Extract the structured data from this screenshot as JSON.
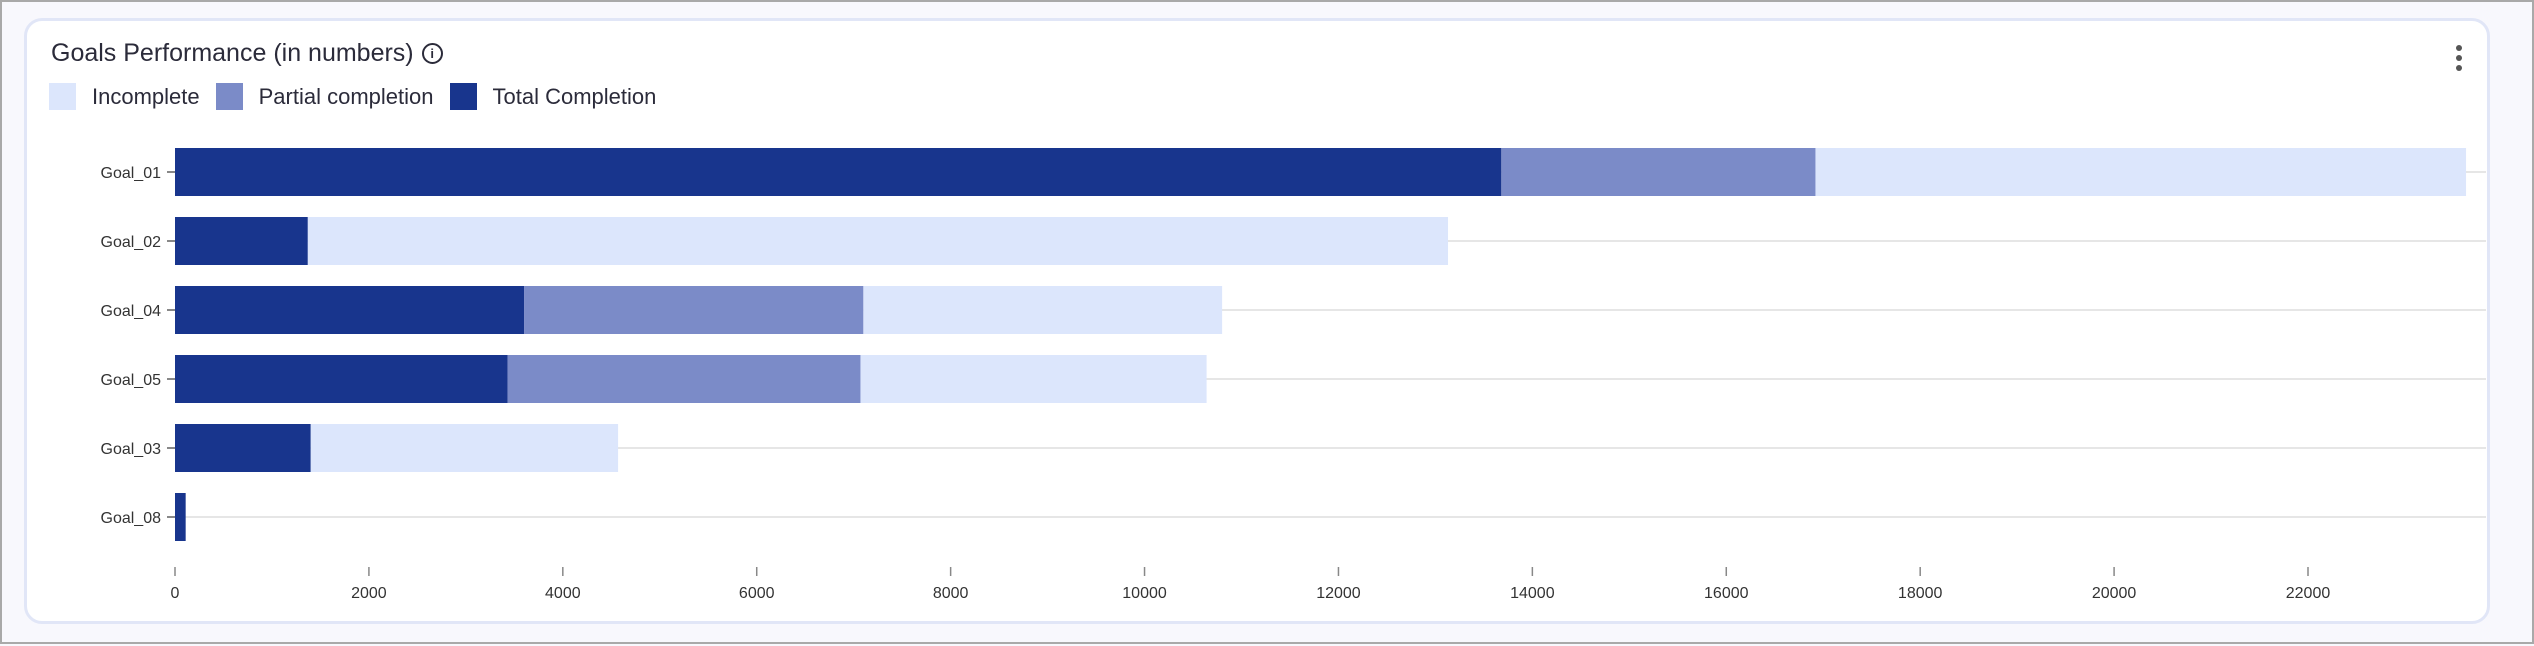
{
  "title": "Goals Performance (in numbers)",
  "info_icon": "i",
  "chart_data": {
    "type": "bar",
    "orientation": "horizontal",
    "stacked": true,
    "title": "Goals Performance (in numbers)",
    "categories": [
      "Goal_01",
      "Goal_02",
      "Goal_04",
      "Goal_05",
      "Goal_03",
      "Goal_08"
    ],
    "series": [
      {
        "name": "Total Completion",
        "color": "#18358d",
        "values": [
          13680,
          1370,
          3600,
          3430,
          1400,
          110
        ]
      },
      {
        "name": "Partial completion",
        "color": "#7b8bc8",
        "values": [
          3240,
          0,
          3500,
          3640,
          0,
          0
        ]
      },
      {
        "name": "Incomplete",
        "color": "#dce6fc",
        "values": [
          6710,
          11760,
          3700,
          3570,
          3170,
          0
        ]
      }
    ],
    "legend": [
      "Incomplete",
      "Partial completion",
      "Total Completion"
    ],
    "legend_colors": [
      "#dce6fc",
      "#7b8bc8",
      "#18358d"
    ],
    "xticks": [
      0,
      2000,
      4000,
      6000,
      8000,
      10000,
      12000,
      14000,
      16000,
      18000,
      20000,
      22000
    ],
    "xlim": [
      0,
      23700
    ],
    "grid": true,
    "legend_position": "top-left"
  }
}
